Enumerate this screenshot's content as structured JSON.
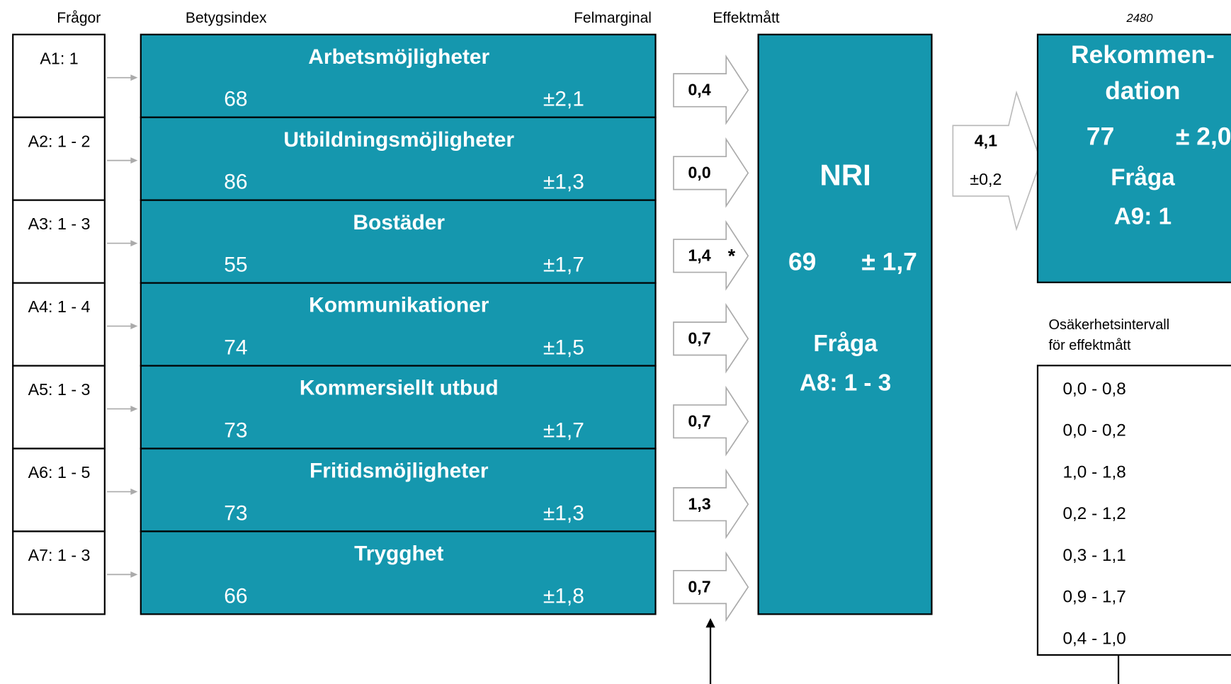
{
  "headers": {
    "questions": "Frågor",
    "index": "Betygsindex",
    "margin": "Felmarginal",
    "effect": "Effektmått",
    "count": "2480"
  },
  "rows": [
    {
      "question": "A1: 1",
      "name": "Arbetsmöjligheter",
      "index": "68",
      "margin": "±2,1",
      "effect": "0,4"
    },
    {
      "question": "A2: 1 - 2",
      "name": "Utbildningsmöjligheter",
      "index": "86",
      "margin": "±1,3",
      "effect": "0,0"
    },
    {
      "question": "A3: 1 - 3",
      "name": "Bostäder",
      "index": "55",
      "margin": "±1,7",
      "effect": "1,4",
      "star": "*"
    },
    {
      "question": "A4: 1 - 4",
      "name": "Kommunikationer",
      "index": "74",
      "margin": "±1,5",
      "effect": "0,7"
    },
    {
      "question": "A5: 1 - 3",
      "name": "Kommersiellt utbud",
      "index": "73",
      "margin": "±1,7",
      "effect": "0,7"
    },
    {
      "question": "A6: 1 - 5",
      "name": "Fritidsmöjligheter",
      "index": "73",
      "margin": "±1,3",
      "effect": "1,3"
    },
    {
      "question": "A7: 1 - 3",
      "name": "Trygghet",
      "index": "66",
      "margin": "±1,8",
      "effect": "0,7"
    }
  ],
  "nri": {
    "title": "NRI",
    "index": "69",
    "margin": "± 1,7",
    "question_label": "Fråga",
    "question": "A8: 1 - 3"
  },
  "link": {
    "effect": "4,1",
    "margin": "±0,2"
  },
  "recommendation": {
    "title_1": "Rekommen-",
    "title_2": "dation",
    "index": "77",
    "margin": "± 2,0",
    "question_label": "Fråga",
    "question": "A9: 1"
  },
  "intervals": {
    "title_1": "Osäkerhetsintervall",
    "title_2": "för effektmått",
    "values": [
      "0,0 - 0,8",
      "0,0 - 0,2",
      "1,0 - 1,8",
      "0,2 - 1,2",
      "0,3 - 1,1",
      "0,9 - 1,7",
      "0,4 - 1,0"
    ]
  }
}
